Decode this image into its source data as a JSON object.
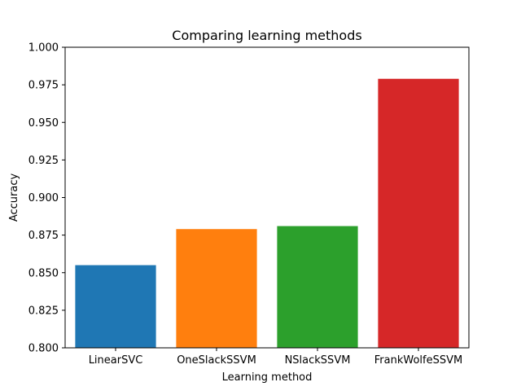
{
  "chart_data": {
    "type": "bar",
    "title": "Comparing learning methods",
    "xlabel": "Learning method",
    "ylabel": "Accuracy",
    "categories": [
      "LinearSVC",
      "OneSlackSSVM",
      "NSlackSSVM",
      "FrankWolfeSSVM"
    ],
    "values": [
      0.855,
      0.879,
      0.881,
      0.979
    ],
    "colors": [
      "#1f77b4",
      "#ff7f0e",
      "#2ca02c",
      "#d62728"
    ],
    "ylim": [
      0.8,
      1.0
    ],
    "yticks": [
      "0.800",
      "0.825",
      "0.850",
      "0.875",
      "0.900",
      "0.925",
      "0.950",
      "0.975",
      "1.000"
    ],
    "grid": false,
    "legend": "none"
  }
}
